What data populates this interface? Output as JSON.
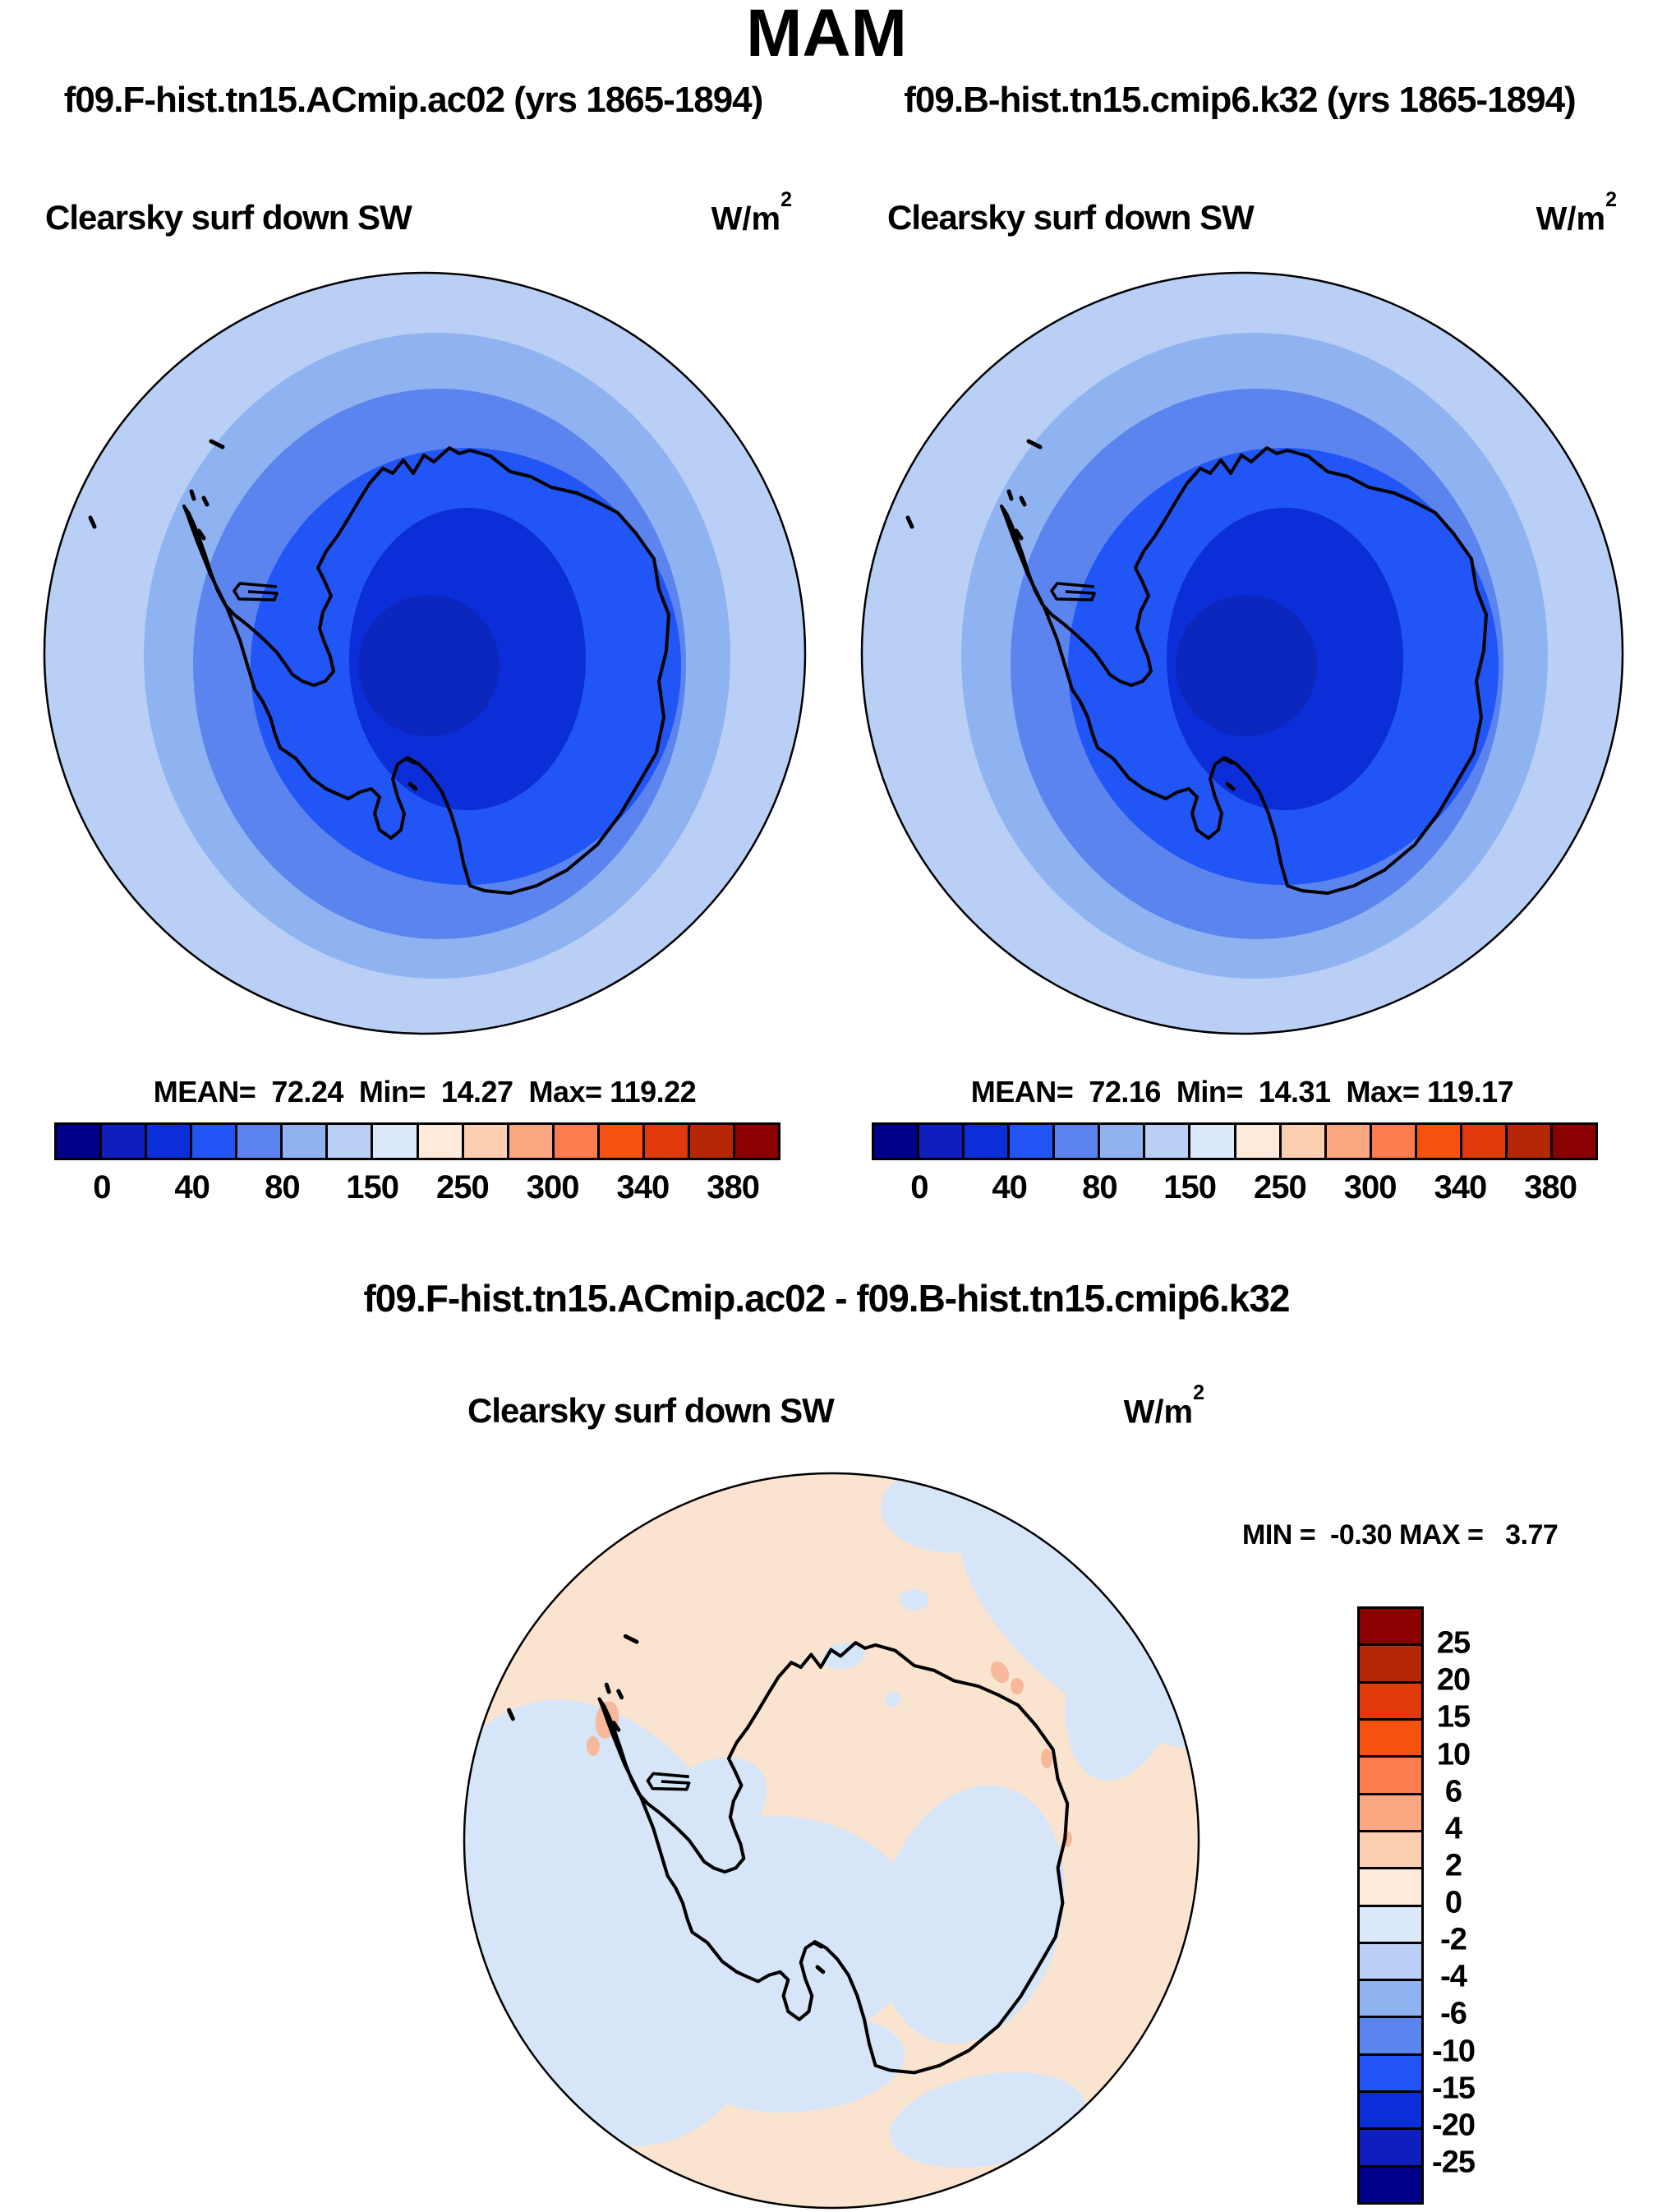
{
  "title": "MAM",
  "panels": [
    {
      "subtitle": "f09.F-hist.tn15.ACmip.ac02 (yrs 1865-1894)",
      "variable": "Clearsky surf down SW",
      "units_base": "W/m",
      "units_exp": "2",
      "stats": "MEAN=  72.24  Min=  14.27  Max= 119.22"
    },
    {
      "subtitle": "f09.B-hist.tn15.cmip6.k32 (yrs 1865-1894)",
      "variable": "Clearsky surf down SW",
      "units_base": "W/m",
      "units_exp": "2",
      "stats": "MEAN=  72.16  Min=  14.31  Max= 119.17"
    }
  ],
  "difference": {
    "title": "f09.F-hist.tn15.ACmip.ac02 - f09.B-hist.tn15.cmip6.k32",
    "variable": "Clearsky surf down SW",
    "units_base": "W/m",
    "units_exp": "2",
    "minmax": "MIN =  -0.30 MAX =   3.77"
  },
  "colorbar": {
    "palette": [
      "#00008b",
      "#0f1fbe",
      "#0b2ed8",
      "#2155f5",
      "#5b84ee",
      "#8fb3f0",
      "#b9cff5",
      "#dbe9fb",
      "#fdeada",
      "#fbcfb0",
      "#faa782",
      "#fb7c4e",
      "#f4520e",
      "#e0390b",
      "#b52707",
      "#8b0000"
    ],
    "h_labels": [
      "0",
      "40",
      "80",
      "150",
      "250",
      "300",
      "340",
      "380"
    ],
    "v_labels": [
      "25",
      "20",
      "15",
      "10",
      "6",
      "4",
      "2",
      "0",
      "-2",
      "-4",
      "-6",
      "-10",
      "-15",
      "-20",
      "-25"
    ]
  },
  "map_colors": {
    "rings": [
      "#b9cff5",
      "#8fb3f0",
      "#5b84ee",
      "#2155f5",
      "#0b2ed8",
      "#0c27bd"
    ],
    "coast": "#000000",
    "diff_base": "#fae4d0",
    "diff_neg": "#d6e6f8",
    "diff_pos": "#f6b99a"
  },
  "chart_data": [
    {
      "type": "heatmap",
      "projection": "south polar stereographic",
      "season": "MAM",
      "title": "f09.F-hist.tn15.ACmip.ac02 (yrs 1865-1894)",
      "variable": "Clearsky surf down SW",
      "units": "W/m2",
      "mean": 72.24,
      "min": 14.27,
      "max": 119.22,
      "colorbar_tick_labels": [
        0,
        40,
        80,
        150,
        250,
        300,
        340,
        380
      ],
      "legend_position": "bottom",
      "pattern": "concentric bands increasing outward from ~14 W/m2 at the pole (dark blue) to ~119 W/m2 (light blue) at the 60S map edge; Antarctica coastline overlaid"
    },
    {
      "type": "heatmap",
      "projection": "south polar stereographic",
      "season": "MAM",
      "title": "f09.B-hist.tn15.cmip6.k32 (yrs 1865-1894)",
      "variable": "Clearsky surf down SW",
      "units": "W/m2",
      "mean": 72.16,
      "min": 14.31,
      "max": 119.17,
      "colorbar_tick_labels": [
        0,
        40,
        80,
        150,
        250,
        300,
        340,
        380
      ],
      "legend_position": "bottom",
      "pattern": "nearly identical concentric bands to first panel"
    },
    {
      "type": "heatmap",
      "projection": "south polar stereographic",
      "season": "MAM",
      "title": "f09.F-hist.tn15.ACmip.ac02 - f09.B-hist.tn15.cmip6.k32",
      "variable": "Clearsky surf down SW",
      "units": "W/m2",
      "min": -0.3,
      "max": 3.77,
      "colorbar_tick_labels": [
        25,
        20,
        15,
        10,
        6,
        4,
        2,
        0,
        -2,
        -4,
        -6,
        -10,
        -15,
        -20,
        -25
      ],
      "legend_position": "right",
      "pattern": "mostly 0 to +2 W/m2 (cream) with -2 to 0 W/m2 (pale blue) over West Antarctica, Ross/Amundsen sector ocean and northeast rim; tiny +2 to +4 spots near the peninsula and east coast"
    }
  ]
}
